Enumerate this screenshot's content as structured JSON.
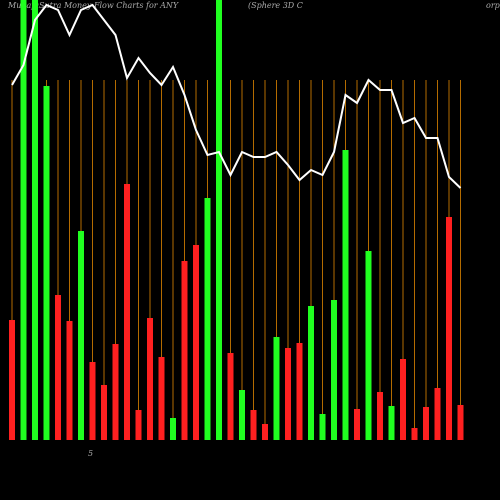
{
  "chart_data": {
    "type": "bar",
    "title": "MunafaSutra  Money Flow  Charts for ANY",
    "subtitle": "(Sphere  3D C",
    "title_right": "orp",
    "axis_note": "5",
    "ylim": [
      0,
      440
    ],
    "guide_color": "#b36b00",
    "line_color": "#ffffff",
    "values": [
      120,
      440,
      440,
      354,
      145,
      119,
      209,
      78,
      55,
      96,
      256,
      30,
      122,
      83,
      22,
      179,
      195,
      242,
      440,
      87,
      50,
      30,
      16,
      103,
      92,
      97,
      134,
      26,
      140,
      290,
      31,
      189,
      48,
      34,
      81,
      12,
      33,
      52,
      223,
      35
    ],
    "colors": [
      "#ff2020",
      "#20ff20",
      "#20ff20",
      "#20ff20",
      "#ff2020",
      "#ff2020",
      "#20ff20",
      "#ff2020",
      "#ff2020",
      "#ff2020",
      "#ff2020",
      "#ff2020",
      "#ff2020",
      "#ff2020",
      "#20ff20",
      "#ff2020",
      "#ff2020",
      "#20ff20",
      "#20ff20",
      "#ff2020",
      "#20ff20",
      "#ff2020",
      "#ff2020",
      "#20ff20",
      "#ff2020",
      "#ff2020",
      "#20ff20",
      "#20ff20",
      "#20ff20",
      "#20ff20",
      "#ff2020",
      "#20ff20",
      "#ff2020",
      "#20ff20",
      "#ff2020",
      "#ff2020",
      "#ff2020",
      "#ff2020",
      "#ff2020",
      "#ff2020"
    ],
    "line": [
      355,
      375,
      420,
      435,
      430,
      405,
      430,
      435,
      420,
      405,
      362,
      382,
      367,
      355,
      373,
      345,
      310,
      285,
      288,
      265,
      288,
      283,
      283,
      288,
      275,
      260,
      270,
      265,
      288,
      345,
      337,
      360,
      350,
      350,
      317,
      322,
      302,
      302,
      263,
      252
    ]
  }
}
